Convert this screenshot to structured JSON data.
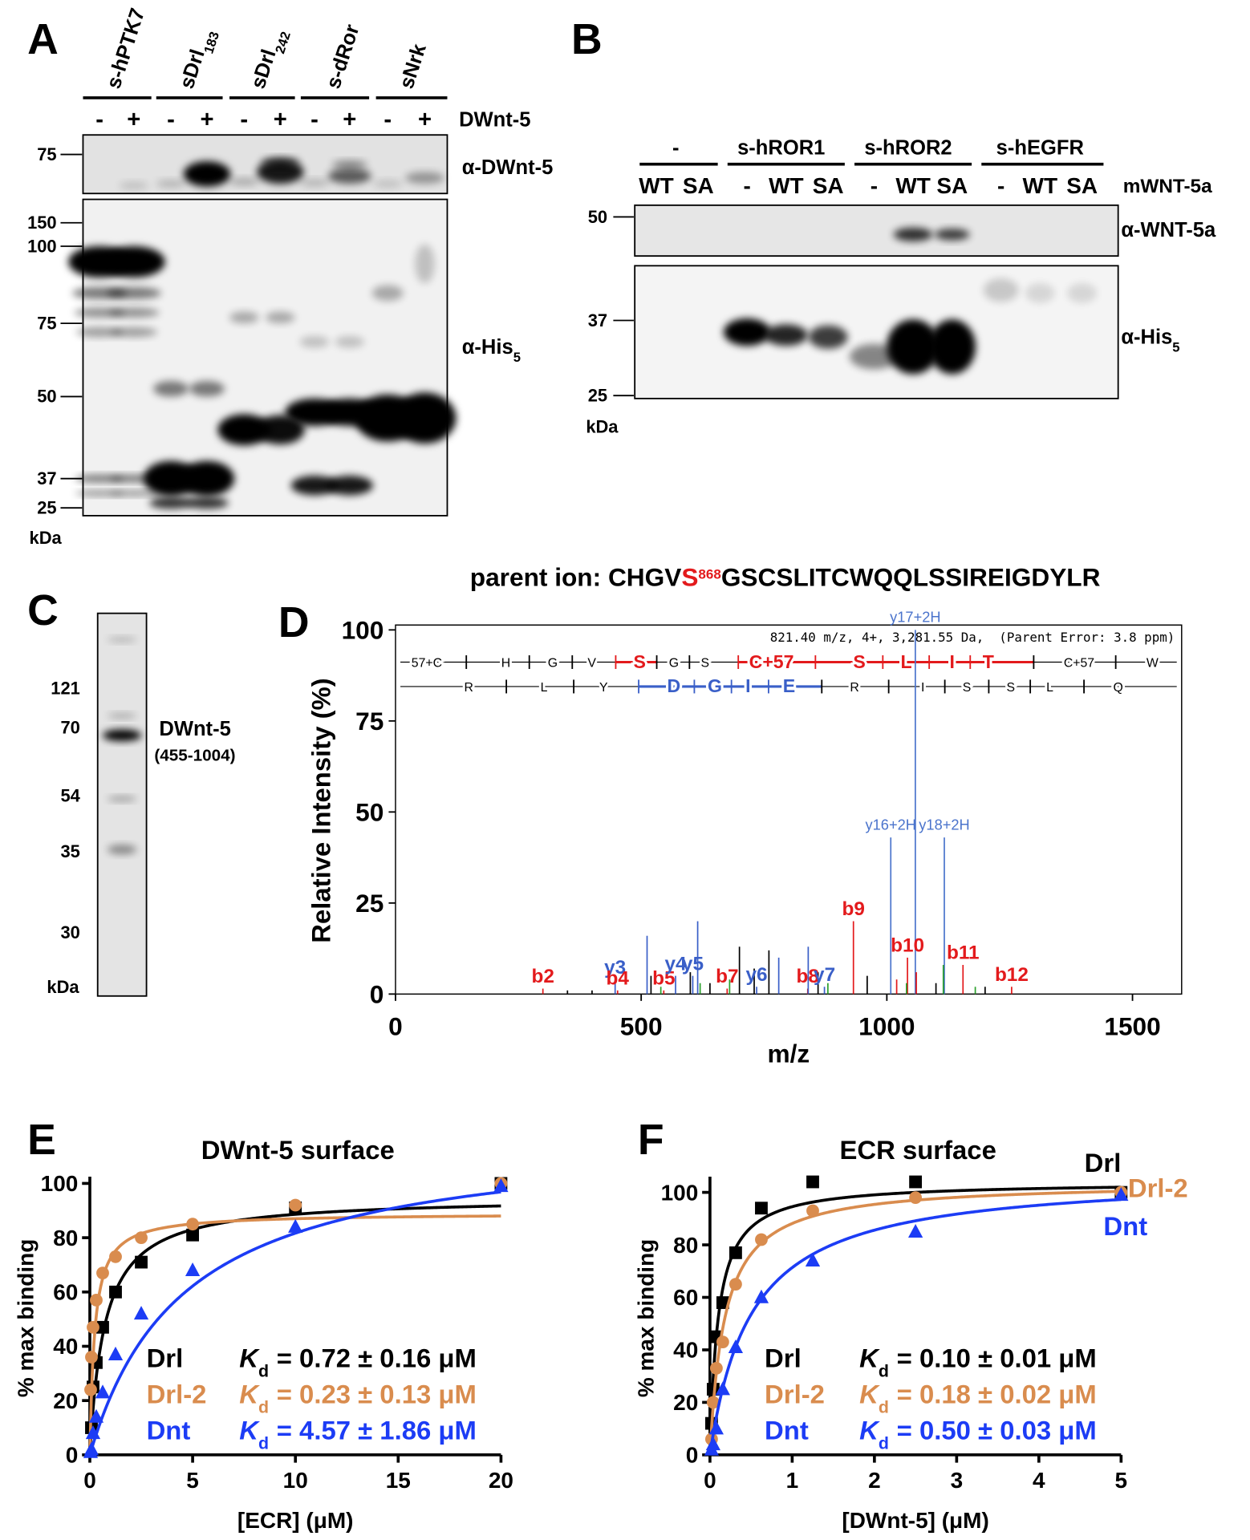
{
  "panels": {
    "A": {
      "letter": "A",
      "samples": [
        {
          "text": "s-hPTK7"
        },
        {
          "text": "sDrl",
          "sub": "183"
        },
        {
          "text": "sDrl",
          "sub": "242"
        },
        {
          "text": "s-dRor"
        },
        {
          "text": "sNrk"
        }
      ],
      "lanes": [
        "-",
        "+",
        "-",
        "+",
        "-",
        "+",
        "-",
        "+",
        "-",
        "+"
      ],
      "treatment": "DWnt-5",
      "top_markers": [
        75
      ],
      "top_antibody": {
        "text": "α-DWnt-5"
      },
      "bottom_markers": [
        150,
        100,
        75,
        50,
        37,
        25
      ],
      "bottom_antibody": {
        "text": "α-His",
        "sub": "5"
      },
      "unit": "kDa"
    },
    "B": {
      "letter": "B",
      "groups": [
        "-",
        "s-hROR1",
        "s-hROR2",
        "s-hEGFR"
      ],
      "lanes": [
        "WT",
        "SA",
        "-",
        "WT",
        "SA",
        "-",
        "WT",
        "SA",
        "-",
        "WT",
        "SA"
      ],
      "treatment": "mWNT-5a",
      "top_markers": [
        50
      ],
      "top_antibody": {
        "text": "α-WNT-5a"
      },
      "bottom_markers": [
        37,
        25
      ],
      "bottom_antibody": {
        "text": "α-His",
        "sub": "5"
      },
      "unit": "kDa"
    },
    "C": {
      "letter": "C",
      "markers": [
        121,
        70,
        54,
        35,
        30
      ],
      "unit": "kDa",
      "band_label": "DWnt-5",
      "band_range": "(455-1004)"
    }
  },
  "chart_data": [
    {
      "type": "stem",
      "letter": "D",
      "title": "parent ion: CHGV",
      "title_highlight": "S",
      "title_superscript": "868",
      "title_rest": "GSCSLITCWQQLSSIREIGDYLR",
      "xlabel": "m/z",
      "ylabel": "Relative Intensity (%)",
      "xlim": [
        0,
        1600
      ],
      "ylim": [
        0,
        100
      ],
      "xticks": [
        0,
        500,
        1000,
        1500
      ],
      "yticks": [
        0,
        25,
        50,
        75,
        100
      ],
      "info": "821.40 m/z, 4+, 3,281.55 Da,  (Parent Error: 3.8 ppm)",
      "ladder": [
        {
          "labels": [
            "57+C",
            "H",
            "G",
            "V",
            "S",
            "G",
            "S",
            "C+57",
            "S",
            "L",
            "I",
            "T",
            "C+57",
            "W"
          ],
          "colors": [
            "#000",
            "#000",
            "#000",
            "#000",
            "#e31a1c",
            "#000",
            "#000",
            "#e31a1c",
            "#e31a1c",
            "#e31a1c",
            "#e31a1c",
            "#e31a1c",
            "#000",
            "#000"
          ]
        },
        {
          "labels": [
            "R",
            "L",
            "Y",
            "D",
            "G",
            "I",
            "E",
            "R",
            "I",
            "S",
            "S",
            "L",
            "Q"
          ],
          "colors": [
            "#000",
            "#000",
            "#000",
            "#3a5fc8",
            "#3a5fc8",
            "#3a5fc8",
            "#3a5fc8",
            "#000",
            "#000",
            "#000",
            "#000",
            "#000",
            "#000"
          ]
        }
      ],
      "peaks": {
        "x": [
          300,
          447,
          452,
          546,
          570,
          605,
          675,
          735,
          839,
          873,
          932,
          1042,
          1155,
          1254,
          1008,
          1058,
          1117,
          512,
          615,
          840,
          780,
          700,
          760,
          520,
          600,
          640,
          730,
          860,
          960,
          1100,
          400,
          350,
          1200,
          540,
          620,
          680,
          880,
          1040,
          1115,
          1180,
          1020,
          1060
        ],
        "values": [
          1.5,
          4,
          1,
          1,
          5,
          5,
          1.5,
          2,
          1.5,
          2,
          20,
          10,
          8,
          2,
          43,
          100,
          43,
          16,
          20,
          13,
          10,
          13,
          12,
          5,
          6,
          3,
          7,
          6,
          5,
          3,
          1,
          1,
          2,
          2,
          3,
          4,
          3,
          3,
          8,
          2,
          4,
          6
        ],
        "colors": [
          "#e31a1c",
          "#3a5fc8",
          "#e31a1c",
          "#e31a1c",
          "#3a5fc8",
          "#3a5fc8",
          "#e31a1c",
          "#3a5fc8",
          "#e31a1c",
          "#3a5fc8",
          "#e31a1c",
          "#e31a1c",
          "#e31a1c",
          "#e31a1c",
          "#4b74cc",
          "#4b74cc",
          "#4b74cc",
          "#3a5fc8",
          "#3a5fc8",
          "#3a5fc8",
          "#3a5fc8",
          "#000",
          "#000",
          "#000",
          "#000",
          "#000",
          "#000",
          "#000",
          "#000",
          "#000",
          "#000",
          "#000",
          "#000",
          "#2ca02c",
          "#2ca02c",
          "#2ca02c",
          "#2ca02c",
          "#2ca02c",
          "#2ca02c",
          "#2ca02c",
          "#e31a1c",
          "#e31a1c"
        ],
        "labels": [
          "b2",
          "y3",
          "b4",
          "b5",
          "y4",
          "y5",
          "b7",
          "y6",
          "b8",
          "y7",
          "b9",
          "b10",
          "b11",
          "b12",
          "y16+2H",
          "y17+2H",
          "y18+2H",
          null,
          null,
          null,
          null,
          null,
          null,
          null,
          null,
          null,
          null,
          null,
          null,
          null,
          null,
          null,
          null,
          null,
          null,
          null,
          null,
          null,
          null,
          null,
          null,
          null
        ]
      }
    },
    {
      "type": "scatter",
      "letter": "E",
      "title": "DWnt-5 surface",
      "xlabel": "[ECR] (μM)",
      "ylabel": "% max binding",
      "xlim": [
        0,
        20
      ],
      "ylim": [
        0,
        102.5
      ],
      "xticks": [
        0,
        5,
        10,
        15,
        20
      ],
      "yticks": [
        0,
        20,
        40,
        60,
        80,
        100
      ],
      "kd_symbol": "K",
      "kd_subscript": "d",
      "curve_labels": false,
      "series": [
        {
          "name": "Drl",
          "color": "#000000",
          "marker": "square",
          "x": [
            0.078,
            0.156,
            0.3125,
            0.625,
            1.25,
            2.5,
            5,
            10,
            20
          ],
          "values": [
            10,
            25,
            34,
            47,
            60,
            71,
            81,
            91,
            100
          ],
          "kd": 0.72,
          "bmax": 95,
          "kd_label": "= 0.72 ± 0.16 μM"
        },
        {
          "name": "Drl-2",
          "color": "#d98c4e",
          "marker": "circle",
          "x": [
            0.039,
            0.078,
            0.156,
            0.3125,
            0.625,
            1.25,
            2.5,
            5,
            10,
            20
          ],
          "values": [
            24,
            36,
            47,
            57,
            67,
            73,
            80,
            85,
            92,
            100
          ],
          "kd": 0.23,
          "bmax": 89,
          "kd_label": "= 0.23 ± 0.13 μM"
        },
        {
          "name": "Dnt",
          "color": "#1c3cf5",
          "marker": "triangle",
          "x": [
            0.039,
            0.078,
            0.156,
            0.3125,
            0.625,
            1.25,
            2.5,
            5,
            10,
            20
          ],
          "values": [
            1,
            2,
            8,
            14,
            23,
            37,
            52,
            68,
            84,
            99
          ],
          "kd": 4.57,
          "bmax": 119,
          "kd_label": "= 4.57 ± 1.86 μM"
        }
      ]
    },
    {
      "type": "scatter",
      "letter": "F",
      "title": "ECR surface",
      "xlabel": "[DWnt-5] (μM)",
      "ylabel": "% max binding",
      "xlim": [
        0,
        5
      ],
      "ylim": [
        0,
        106
      ],
      "xticks": [
        0,
        1,
        2,
        3,
        4,
        5
      ],
      "yticks": [
        0,
        20,
        40,
        60,
        80,
        100
      ],
      "kd_symbol": "K",
      "kd_subscript": "d",
      "curve_labels": true,
      "series": [
        {
          "name": "Drl",
          "color": "#000000",
          "marker": "square",
          "x": [
            0.0195,
            0.039,
            0.078,
            0.156,
            0.3125,
            0.625,
            1.25,
            2.5,
            5
          ],
          "values": [
            12,
            25,
            45,
            58,
            77,
            94,
            104,
            104,
            100
          ],
          "kd": 0.1,
          "bmax": 104,
          "kd_label": "= 0.10 ± 0.01 μM"
        },
        {
          "name": "Drl-2",
          "color": "#d98c4e",
          "marker": "circle",
          "x": [
            0.0195,
            0.039,
            0.078,
            0.156,
            0.3125,
            0.625,
            1.25,
            2.5,
            5
          ],
          "values": [
            6,
            20,
            33,
            43,
            65,
            82,
            93,
            98,
            100
          ],
          "kd": 0.18,
          "bmax": 104,
          "kd_label": "= 0.18 ± 0.02 μM"
        },
        {
          "name": "Dnt",
          "color": "#1c3cf5",
          "marker": "triangle",
          "x": [
            0.0195,
            0.039,
            0.078,
            0.156,
            0.3125,
            0.625,
            1.25,
            2.5,
            5
          ],
          "values": [
            2,
            4,
            10,
            25,
            41,
            60,
            74,
            85,
            99
          ],
          "kd": 0.5,
          "bmax": 107,
          "kd_label": "= 0.50 ± 0.03 μM"
        }
      ]
    }
  ]
}
